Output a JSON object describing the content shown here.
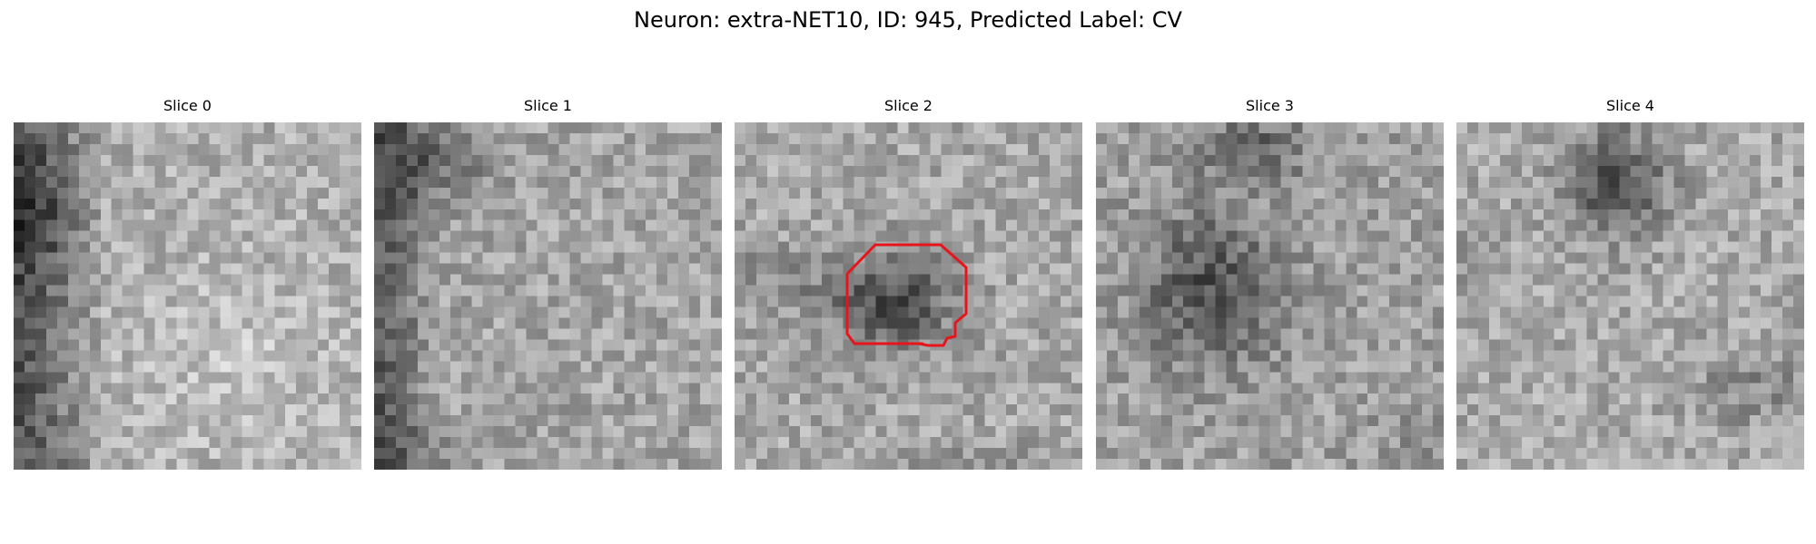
{
  "figure": {
    "title": "Neuron: extra-NET10, ID: 945, Predicted Label: CV"
  },
  "slices": [
    {
      "label": "Slice 0"
    },
    {
      "label": "Slice 1"
    },
    {
      "label": "Slice 2"
    },
    {
      "label": "Slice 3"
    },
    {
      "label": "Slice 4"
    }
  ],
  "roi_outline": {
    "slice_index": 2,
    "color": "#e8141b"
  },
  "colors": {
    "background": "#ffffff",
    "text": "#000000",
    "colormap": "grayscale"
  }
}
